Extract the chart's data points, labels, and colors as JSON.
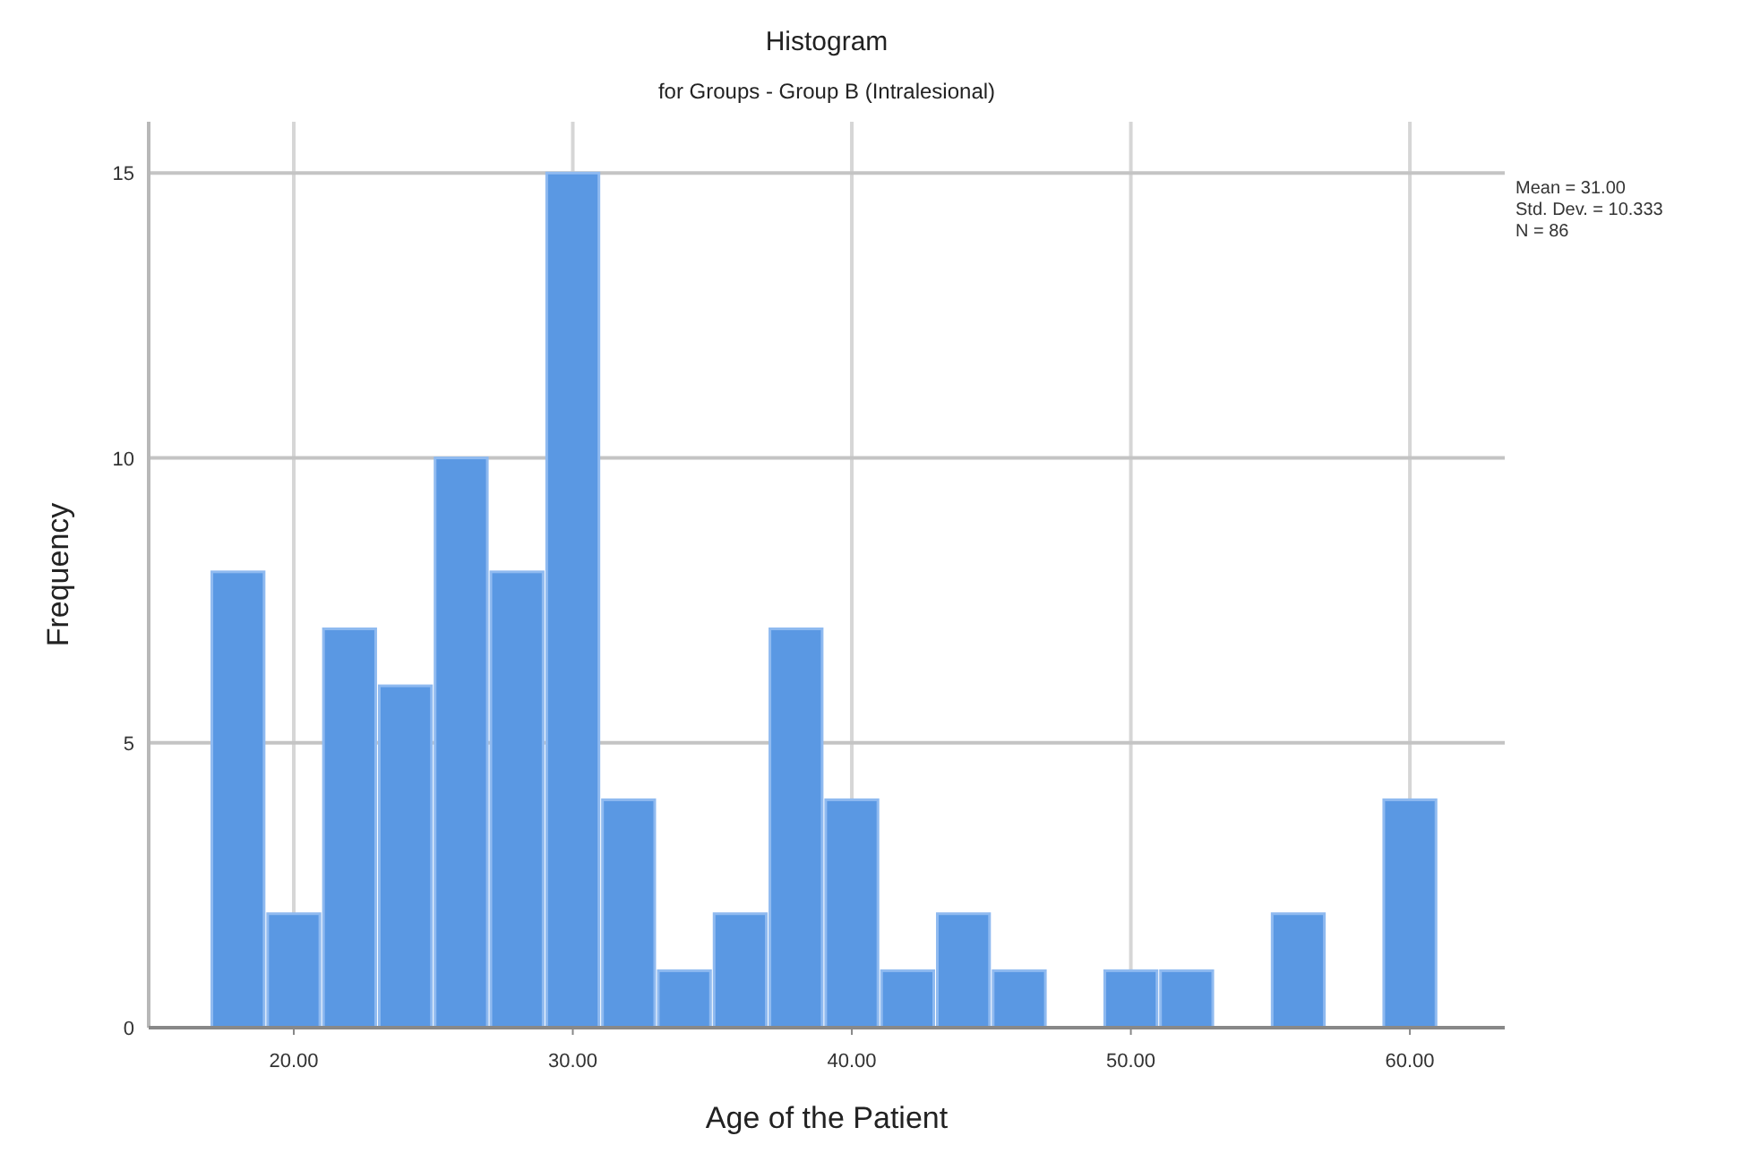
{
  "chart_data": {
    "type": "histogram",
    "title": "Histogram",
    "subtitle": "for Groups - Group B (Intralesional)",
    "xlabel": "Age of the Patient",
    "ylabel": "Frequency",
    "bins": [
      17,
      19,
      21,
      23,
      25,
      27,
      29,
      31,
      33,
      35,
      37,
      39,
      41,
      43,
      45,
      47,
      49,
      51,
      53,
      55,
      57,
      59,
      61
    ],
    "values": [
      8,
      2,
      7,
      6,
      10,
      8,
      15,
      4,
      1,
      2,
      7,
      4,
      1,
      2,
      1,
      0,
      1,
      1,
      0,
      2,
      0,
      4
    ],
    "color": "#5a98e3",
    "xlim": [
      14.8,
      63.4
    ],
    "ylim": [
      0,
      15.9
    ],
    "xticks": [
      {
        "value": 20,
        "label": "20.00"
      },
      {
        "value": 30,
        "label": "30.00"
      },
      {
        "value": 40,
        "label": "40.00"
      },
      {
        "value": 50,
        "label": "50.00"
      },
      {
        "value": 60,
        "label": "60.00"
      }
    ],
    "yticks": [
      0,
      5,
      10,
      15
    ],
    "grid": true,
    "annotations": [
      "Mean = 31.00",
      "Std. Dev. = 10.333",
      "N = 86"
    ]
  }
}
